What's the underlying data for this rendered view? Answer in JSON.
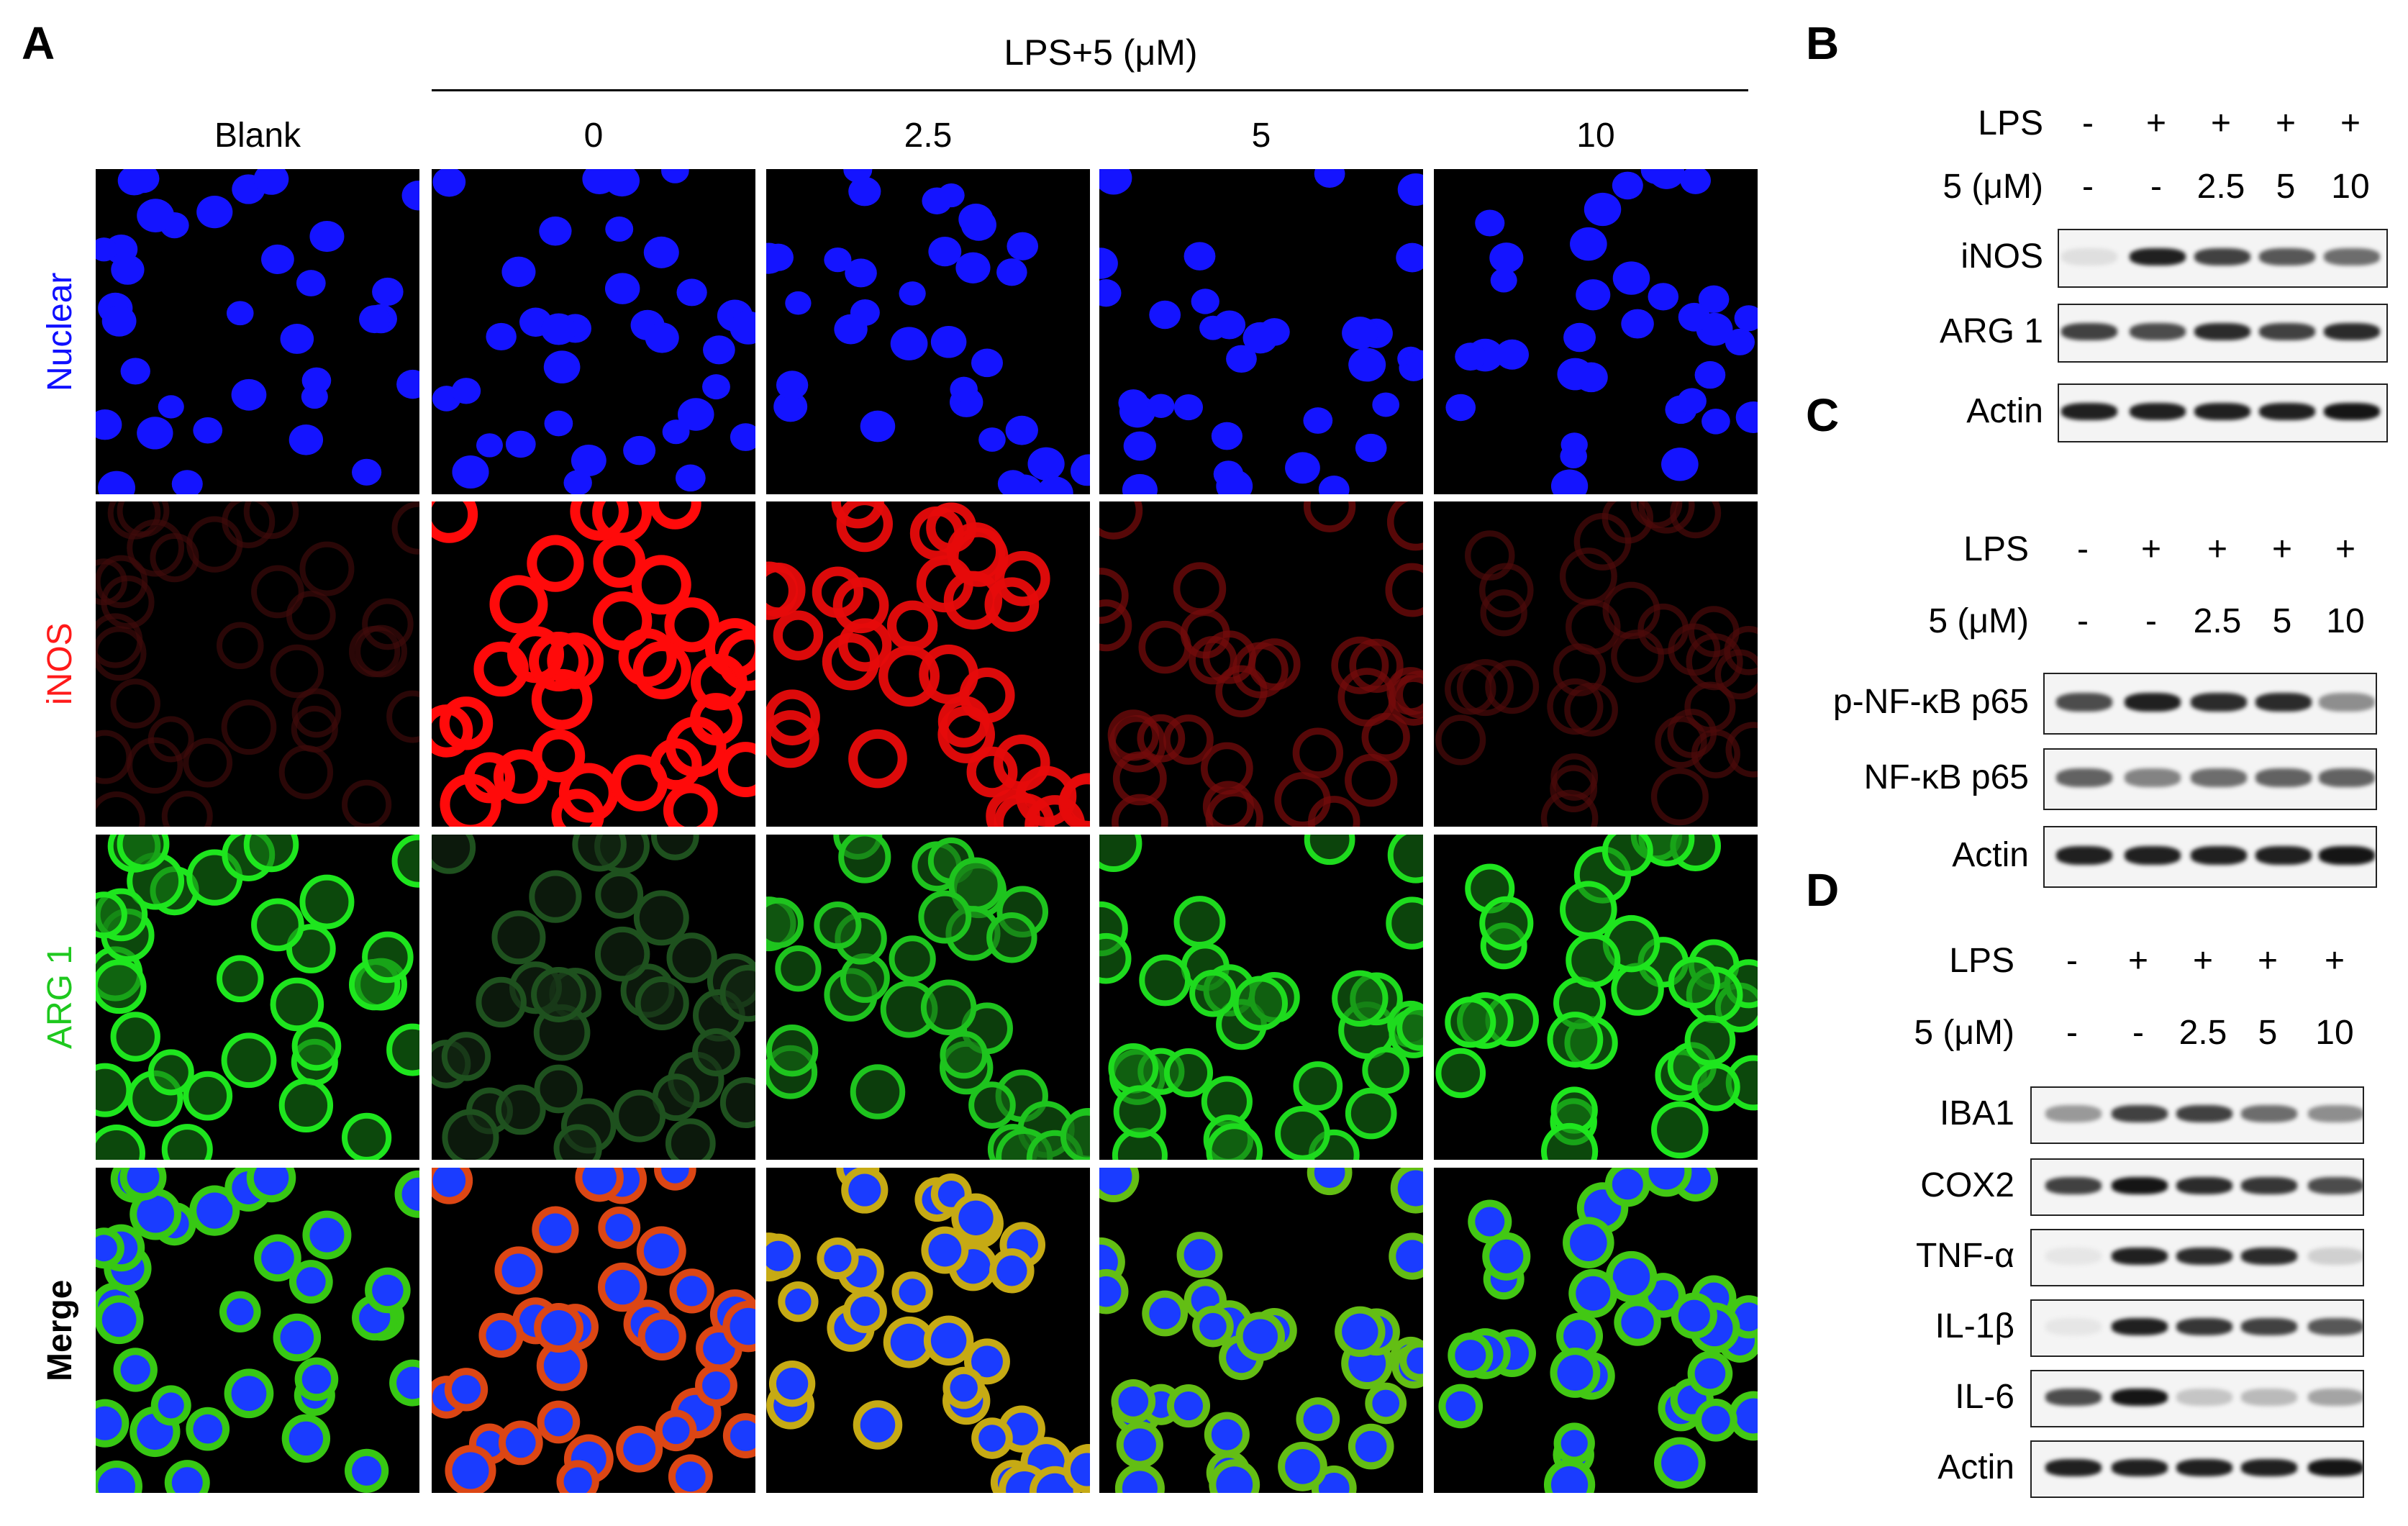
{
  "panel_letters": {
    "a": "A",
    "b": "B",
    "c": "C",
    "d": "D"
  },
  "panel_a": {
    "group_header": "LPS+5 (μM)",
    "columns": [
      "Blank",
      "0",
      "2.5",
      "5",
      "10"
    ],
    "rows": [
      {
        "label": "Nuclear",
        "color": "#1010ff"
      },
      {
        "label": "iNOS",
        "color": "#ff1a1a"
      },
      {
        "label": "ARG 1",
        "color": "#1ec81e"
      },
      {
        "label": "Merge",
        "color": "#000000"
      }
    ]
  },
  "panel_b": {
    "lps_label": "LPS",
    "lps_values": [
      "-",
      "+",
      "+",
      "+",
      "+"
    ],
    "dose_label": "5 (μM)",
    "dose_values": [
      "-",
      "-",
      "2.5",
      "5",
      "10"
    ],
    "blots": [
      {
        "label": "iNOS",
        "intensity": [
          0.03,
          0.9,
          0.75,
          0.65,
          0.55
        ]
      },
      {
        "label": "ARG 1",
        "intensity": [
          0.75,
          0.7,
          0.85,
          0.75,
          0.85
        ]
      }
    ]
  },
  "panel_b_actin": {
    "label": "Actin",
    "intensity": [
      0.9,
      0.9,
      0.9,
      0.9,
      0.95
    ]
  },
  "panel_c": {
    "lps_label": "LPS",
    "lps_values": [
      "-",
      "+",
      "+",
      "+",
      "+"
    ],
    "dose_label": "5 (μM)",
    "dose_values": [
      "-",
      "-",
      "2.5",
      "5",
      "10"
    ],
    "blots": [
      {
        "label": "p-NF-κB p65",
        "intensity": [
          0.7,
          0.9,
          0.85,
          0.85,
          0.4
        ]
      },
      {
        "label": "NF-κB p65",
        "intensity": [
          0.6,
          0.45,
          0.55,
          0.6,
          0.6
        ]
      },
      {
        "label": "Actin",
        "intensity": [
          0.9,
          0.9,
          0.9,
          0.9,
          0.95
        ]
      }
    ]
  },
  "panel_d": {
    "lps_label": "LPS",
    "lps_values": [
      "-",
      "+",
      "+",
      "+",
      "+"
    ],
    "dose_label": "5 (μM)",
    "dose_values": [
      "-",
      "-",
      "2.5",
      "5",
      "10"
    ],
    "blots": [
      {
        "label": "IBA1",
        "intensity": [
          0.35,
          0.75,
          0.75,
          0.55,
          0.4
        ]
      },
      {
        "label": "COX2",
        "intensity": [
          0.75,
          0.95,
          0.85,
          0.8,
          0.7
        ]
      },
      {
        "label": "TNF-α",
        "intensity": [
          0.0,
          0.9,
          0.85,
          0.85,
          0.1
        ]
      },
      {
        "label": "IL-1β",
        "intensity": [
          0.0,
          0.9,
          0.8,
          0.75,
          0.65
        ]
      },
      {
        "label": "IL-6",
        "intensity": [
          0.7,
          0.95,
          0.15,
          0.2,
          0.3
        ]
      },
      {
        "label": "Actin",
        "intensity": [
          0.9,
          0.9,
          0.9,
          0.9,
          0.95
        ]
      }
    ]
  }
}
